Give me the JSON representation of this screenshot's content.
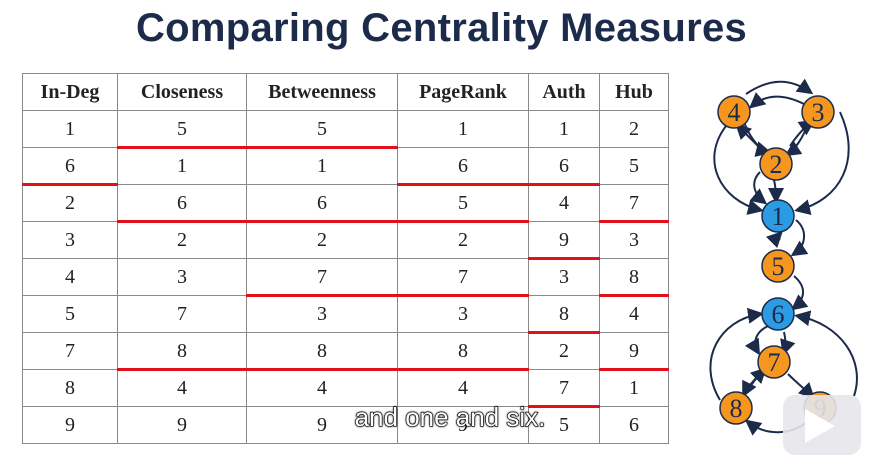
{
  "slide": {
    "title": "Comparing Centrality Measures"
  },
  "table": {
    "headers": [
      "In-Deg",
      "Closeness",
      "Betweenness",
      "PageRank",
      "Auth",
      "Hub"
    ],
    "rows": [
      [
        "1",
        "5",
        "5",
        "1",
        "1",
        "2"
      ],
      [
        "6",
        "1",
        "1",
        "6",
        "6",
        "5"
      ],
      [
        "2",
        "6",
        "6",
        "5",
        "4",
        "7"
      ],
      [
        "3",
        "2",
        "2",
        "2",
        "9",
        "3"
      ],
      [
        "4",
        "3",
        "7",
        "7",
        "3",
        "8"
      ],
      [
        "5",
        "7",
        "3",
        "3",
        "8",
        "4"
      ],
      [
        "7",
        "8",
        "8",
        "8",
        "2",
        "9"
      ],
      [
        "8",
        "4",
        "4",
        "4",
        "7",
        "1"
      ],
      [
        "9",
        "9",
        "9",
        "9",
        "5",
        "6"
      ]
    ],
    "highlight_color": "#e0111a"
  },
  "graph": {
    "nodes": [
      {
        "label": "4",
        "color": "#f5961e"
      },
      {
        "label": "3",
        "color": "#f5961e"
      },
      {
        "label": "2",
        "color": "#f5961e"
      },
      {
        "label": "1",
        "color": "#2b9be3"
      },
      {
        "label": "5",
        "color": "#f5961e"
      },
      {
        "label": "6",
        "color": "#2b9be3"
      },
      {
        "label": "7",
        "color": "#f5961e"
      },
      {
        "label": "8",
        "color": "#f5961e"
      },
      {
        "label": "9",
        "color": "#f5961e"
      }
    ]
  },
  "subtitle": {
    "text": "and one and six."
  }
}
